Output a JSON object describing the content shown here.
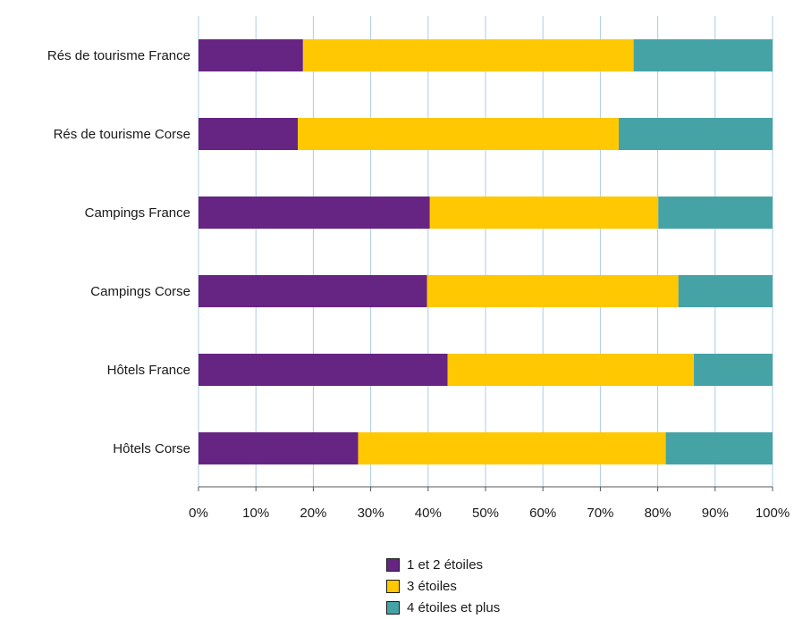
{
  "chart_data": {
    "type": "bar",
    "orientation": "horizontal",
    "stacked": true,
    "categories": [
      "Rés de tourisme France",
      "Rés de tourisme Corse",
      "Campings France",
      "Campings Corse",
      "Hôtels France",
      "Hôtels Corse"
    ],
    "series": [
      {
        "name": "1 et 2 étoiles",
        "color": "#662483",
        "values": [
          18.2,
          17.3,
          40.3,
          39.8,
          43.4,
          27.8
        ]
      },
      {
        "name": "3 étoiles",
        "color": "#FFC800",
        "values": [
          57.6,
          55.9,
          39.8,
          43.8,
          42.9,
          53.6
        ]
      },
      {
        "name": "4 étoiles et plus",
        "color": "#45A3A6",
        "values": [
          24.2,
          26.8,
          19.9,
          16.4,
          13.7,
          18.6
        ]
      }
    ],
    "xticks": [
      "0%",
      "10%",
      "20%",
      "30%",
      "40%",
      "50%",
      "60%",
      "70%",
      "80%",
      "90%",
      "100%"
    ],
    "xlim": [
      0,
      100
    ],
    "grid": "vertical",
    "legend_position": "bottom-center"
  }
}
